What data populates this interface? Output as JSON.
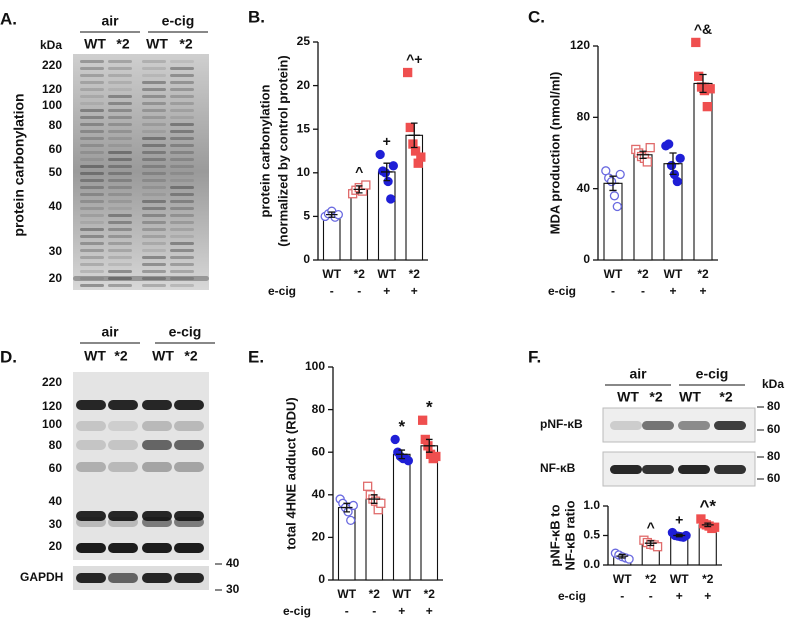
{
  "chart_data": [
    {
      "type": "bar",
      "panel": "B.",
      "ylabel": [
        "protein carbonylation",
        "(normalized by control protein)"
      ],
      "categories": [
        "WT",
        "*2",
        "WT",
        "*2"
      ],
      "row_label": "e-cig",
      "row_values": [
        "-",
        "-",
        "+",
        "+"
      ],
      "values": [
        5.2,
        8.1,
        10.1,
        14.3
      ],
      "errors": [
        0.3,
        0.4,
        1.0,
        1.4
      ],
      "points": [
        [
          5.0,
          5.3,
          5.6,
          4.9,
          5.2
        ],
        [
          7.6,
          8.0,
          8.3,
          7.9,
          8.6
        ],
        [
          12.1,
          10.2,
          10.0,
          9.0,
          7.0,
          10.8
        ],
        [
          21.5,
          15.2,
          13.3,
          12.5,
          11.1,
          11.8
        ]
      ],
      "colors": [
        "#6a6ae0",
        "#e06b6b",
        "#1f1fd6",
        "#ef4f4f"
      ],
      "filled": [
        false,
        false,
        true,
        true
      ],
      "shapes": [
        "circle",
        "square",
        "circle",
        "square"
      ],
      "annotations": [
        {
          "index": 1,
          "text": "^"
        },
        {
          "index": 2,
          "text": "+"
        },
        {
          "index": 3,
          "text": "^+"
        }
      ],
      "ylim": [
        0,
        25
      ],
      "yticks": [
        0,
        5,
        10,
        15,
        20,
        25
      ]
    },
    {
      "type": "bar",
      "panel": "C.",
      "ylabel": [
        "MDA production (nmol/ml)"
      ],
      "categories": [
        "WT",
        "*2",
        "WT",
        "*2"
      ],
      "row_label": "e-cig",
      "row_values": [
        "-",
        "-",
        "+",
        "+"
      ],
      "values": [
        43,
        59,
        54,
        99
      ],
      "errors": [
        4,
        2,
        6,
        5
      ],
      "points": [
        [
          50,
          46,
          44,
          36,
          30,
          48
        ],
        [
          62,
          60,
          58,
          57,
          55,
          63
        ],
        [
          64,
          65,
          53,
          48,
          44,
          57
        ],
        [
          122,
          103,
          97,
          95,
          86,
          96
        ]
      ],
      "colors": [
        "#6a6ae0",
        "#e06b6b",
        "#1f1fd6",
        "#ef4f4f"
      ],
      "filled": [
        false,
        false,
        true,
        true
      ],
      "shapes": [
        "circle",
        "square",
        "circle",
        "square"
      ],
      "annotations": [
        {
          "index": 3,
          "text": "^&"
        }
      ],
      "ylim": [
        0,
        120
      ],
      "yticks": [
        0,
        40,
        80,
        120
      ]
    },
    {
      "type": "bar",
      "panel": "E.",
      "ylabel": [
        "total 4HNE adduct (RDU)"
      ],
      "categories": [
        "WT",
        "*2",
        "WT",
        "*2"
      ],
      "row_label": "e-cig",
      "row_values": [
        "-",
        "-",
        "+",
        "+"
      ],
      "values": [
        34,
        38,
        59,
        63
      ],
      "errors": [
        2,
        2,
        2,
        3
      ],
      "points": [
        [
          38,
          36,
          34,
          32,
          28,
          35
        ],
        [
          44,
          40,
          38,
          37,
          33,
          36
        ],
        [
          66,
          60,
          58,
          57,
          57,
          56
        ],
        [
          75,
          66,
          63,
          59,
          57,
          58
        ]
      ],
      "colors": [
        "#6a6ae0",
        "#e06b6b",
        "#1f1fd6",
        "#ef4f4f"
      ],
      "filled": [
        false,
        false,
        true,
        true
      ],
      "shapes": [
        "circle",
        "square",
        "circle",
        "square"
      ],
      "annotations": [
        {
          "index": 2,
          "text": "*"
        },
        {
          "index": 3,
          "text": "*"
        }
      ],
      "ylim": [
        0,
        100
      ],
      "yticks": [
        0,
        20,
        40,
        60,
        80,
        100
      ]
    },
    {
      "type": "bar",
      "ylabel": [
        "pNF-κB to",
        "NF-κB ratio"
      ],
      "categories": [
        "WT",
        "*2",
        "WT",
        "*2"
      ],
      "row_label": "e-cig",
      "row_values": [
        "-",
        "-",
        "+",
        "+"
      ],
      "values": [
        0.15,
        0.37,
        0.5,
        0.68
      ],
      "errors": [
        0.03,
        0.04,
        0.02,
        0.03
      ],
      "points": [
        [
          0.2,
          0.17,
          0.14,
          0.12,
          0.1
        ],
        [
          0.42,
          0.38,
          0.35,
          0.34,
          0.31
        ],
        [
          0.55,
          0.5,
          0.49,
          0.48,
          0.47,
          0.5
        ],
        [
          0.78,
          0.7,
          0.68,
          0.66,
          0.62,
          0.64
        ]
      ],
      "colors": [
        "#6a6ae0",
        "#e06b6b",
        "#1f1fd6",
        "#ef4f4f"
      ],
      "filled": [
        false,
        false,
        true,
        true
      ],
      "shapes": [
        "circle",
        "square",
        "circle",
        "square"
      ],
      "annotations": [
        {
          "index": 1,
          "text": "^"
        },
        {
          "index": 2,
          "text": "+"
        },
        {
          "index": 3,
          "text": "^*"
        }
      ],
      "ylim": [
        0,
        1.0
      ],
      "yticks": [
        {
          "value": 0,
          "label": "0.0"
        },
        0.5,
        {
          "value": 1.0,
          "label": "1.0"
        }
      ]
    }
  ],
  "blots": {
    "A": {
      "panel": "A.",
      "ylabel": "protein carbonylation",
      "kda": "kDa",
      "groups": [
        "air",
        "e-cig"
      ],
      "lanes": [
        "WT",
        "*2",
        "WT",
        "*2"
      ],
      "markers": [
        220,
        120,
        100,
        80,
        60,
        50,
        40,
        30,
        20
      ]
    },
    "D": {
      "panel": "D.",
      "groups": [
        "air",
        "e-cig"
      ],
      "lanes": [
        "WT",
        "*2",
        "WT",
        "*2"
      ],
      "markers": [
        220,
        120,
        100,
        80,
        60,
        40,
        30,
        20
      ],
      "strips": [
        {
          "label": "GAPDH",
          "markers": [
            40,
            30
          ]
        }
      ]
    },
    "F": {
      "panel": "F.",
      "kda": "kDa",
      "groups": [
        "air",
        "e-cig"
      ],
      "lanes": [
        "WT",
        "*2",
        "WT",
        "*2"
      ],
      "strips": [
        {
          "label": "pNF-κB",
          "markers": [
            80,
            60
          ]
        },
        {
          "label": "NF-κB",
          "markers": [
            80,
            60
          ]
        }
      ]
    }
  }
}
